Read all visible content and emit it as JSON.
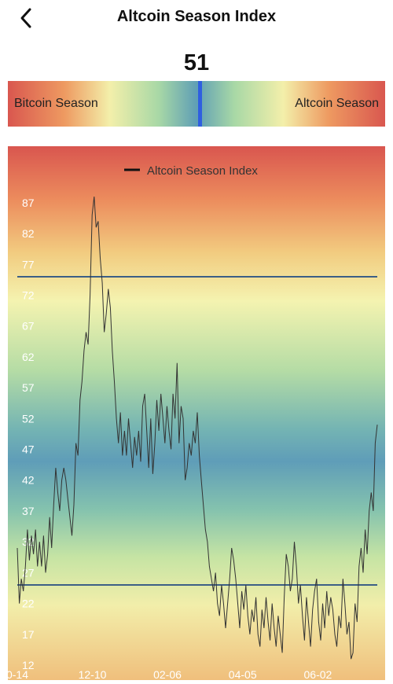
{
  "header": {
    "title": "Altcoin Season Index",
    "back_icon": "chevron-left-icon"
  },
  "index_value": "51",
  "gauge": {
    "left_label": "Bitcoin Season",
    "right_label": "Altcoin Season",
    "marker_value": 51
  },
  "chart_data": {
    "type": "line",
    "legend": [
      "Altcoin Season Index"
    ],
    "legend_position": "top-center",
    "x_tick_labels": [
      "0-14",
      "12-10",
      "02-06",
      "04-05",
      "06-02"
    ],
    "y_ticks": [
      12,
      17,
      22,
      27,
      32,
      37,
      42,
      47,
      52,
      57,
      62,
      67,
      72,
      77,
      82,
      87
    ],
    "ylim": [
      12,
      88
    ],
    "reference_lines": [
      75,
      25
    ],
    "series": [
      {
        "name": "Altcoin Season Index",
        "values": [
          31,
          22,
          26,
          24,
          28,
          34,
          29,
          33,
          30,
          34,
          28,
          32,
          28,
          33,
          27,
          30,
          36,
          31,
          38,
          44,
          40,
          37,
          42,
          44,
          42,
          39,
          36,
          33,
          38,
          48,
          46,
          55,
          58,
          63,
          66,
          64,
          72,
          85,
          88,
          83,
          84,
          78,
          74,
          66,
          69,
          73,
          70,
          63,
          58,
          52,
          48,
          53,
          46,
          50,
          46,
          52,
          48,
          44,
          49,
          46,
          50,
          45,
          54,
          56,
          50,
          44,
          52,
          43,
          48,
          55,
          50,
          56,
          52,
          48,
          54,
          50,
          47,
          56,
          52,
          61,
          48,
          54,
          52,
          42,
          44,
          48,
          46,
          50,
          48,
          53,
          46,
          42,
          38,
          34,
          32,
          28,
          26,
          24,
          27,
          22,
          20,
          25,
          22,
          18,
          22,
          26,
          31,
          29,
          26,
          22,
          18,
          24,
          21,
          25,
          20,
          17,
          21,
          19,
          23,
          17,
          15,
          21,
          18,
          23,
          19,
          16,
          22,
          18,
          15,
          20,
          17,
          14,
          23,
          30,
          28,
          24,
          26,
          32,
          28,
          22,
          25,
          20,
          16,
          23,
          19,
          15,
          21,
          24,
          26,
          19,
          16,
          22,
          18,
          24,
          20,
          23,
          21,
          17,
          15,
          20,
          18,
          26,
          22,
          17,
          19,
          13,
          14,
          22,
          19,
          28,
          31,
          27,
          34,
          30,
          37,
          40,
          37,
          48,
          51
        ]
      }
    ]
  }
}
